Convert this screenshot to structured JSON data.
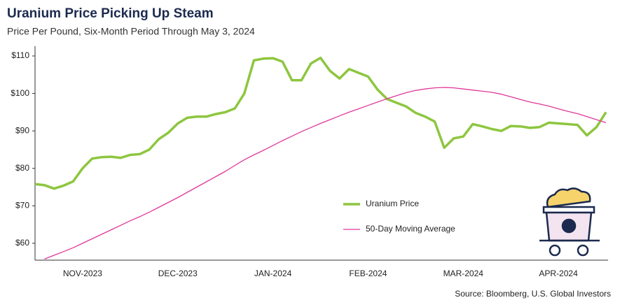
{
  "chart_data": {
    "type": "line",
    "title": "Uranium Price Picking Up Steam",
    "subtitle": "Price Per Pound, Six-Month Period Through May 3, 2024",
    "source": "Source: Bloomberg, U.S. Global Investors",
    "categories": [
      null,
      null,
      null,
      null,
      null,
      "NOV-2023",
      null,
      null,
      null,
      null,
      null,
      null,
      null,
      null,
      null,
      "DEC-2023",
      null,
      null,
      null,
      null,
      null,
      null,
      null,
      null,
      null,
      "JAN-2024",
      null,
      null,
      null,
      null,
      null,
      null,
      null,
      null,
      null,
      "FEB-2024",
      null,
      null,
      null,
      null,
      null,
      null,
      null,
      null,
      null,
      "MAR-2024",
      null,
      null,
      null,
      null,
      null,
      null,
      null,
      null,
      null,
      "APR-2024",
      null,
      null,
      null,
      null,
      null
    ],
    "series": [
      {
        "name": "Uranium Price",
        "color": "#8dc63f",
        "values": [
          75.8,
          75.5,
          74.6,
          75.4,
          76.5,
          80,
          82.6,
          83,
          83.1,
          82.8,
          83.6,
          83.8,
          85,
          87.8,
          89.5,
          92,
          93.5,
          93.8,
          93.8,
          94.5,
          95,
          96,
          100,
          108.8,
          109.3,
          109.4,
          108.5,
          103.5,
          103.5,
          108,
          109.5,
          106,
          104,
          106.5,
          105.5,
          104.5,
          101,
          98.5,
          97.5,
          96.5,
          94.8,
          93.8,
          92.5,
          85.5,
          88,
          88.5,
          91.8,
          91.2,
          90.5,
          90,
          91.3,
          91.2,
          90.8,
          91,
          92.2,
          92,
          91.8,
          91.6,
          88.8,
          91,
          95
        ]
      },
      {
        "name": "50-Day Moving Average",
        "color": "#e0389a",
        "values": [
          null,
          55.8,
          56.8,
          57.8,
          58.8,
          60,
          61.2,
          62.4,
          63.6,
          64.8,
          66,
          67.1,
          68.3,
          69.6,
          70.9,
          72.2,
          73.6,
          75,
          76.4,
          77.8,
          79.2,
          80.8,
          82.3,
          83.6,
          84.8,
          86.1,
          87.4,
          88.6,
          89.8,
          90.9,
          92,
          93,
          94,
          95,
          95.9,
          96.8,
          97.7,
          98.6,
          99.4,
          100.2,
          100.8,
          101.2,
          101.5,
          101.6,
          101.5,
          101.2,
          100.9,
          100.6,
          100.3,
          99.8,
          99.1,
          98.4,
          97.7,
          97.2,
          96.6,
          95.9,
          95.2,
          94.6,
          93.8,
          93,
          92.2
        ]
      }
    ],
    "ylim": [
      55.5,
      112
    ],
    "yticks": [
      {
        "value": 60,
        "label": "$60"
      },
      {
        "value": 70,
        "label": "$70"
      },
      {
        "value": 80,
        "label": "$80"
      },
      {
        "value": 90,
        "label": "$90"
      },
      {
        "value": 100,
        "label": "$100"
      },
      {
        "value": 110,
        "label": "$110"
      }
    ],
    "grid": false
  }
}
